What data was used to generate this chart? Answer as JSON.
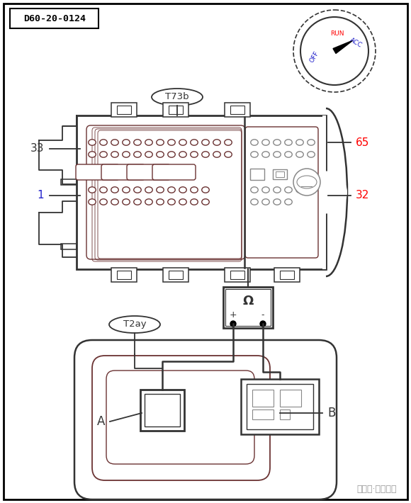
{
  "bg_color": "#ffffff",
  "line_color": "#000000",
  "dark_line": "#333333",
  "gray_line": "#888888",
  "brown_line": "#6B3333",
  "title_label": "D60-20-0124",
  "connector_label": "T73b",
  "connector2_label": "T2ay",
  "label_33": "33",
  "label_1": "1",
  "label_65": "65",
  "label_32": "32",
  "label_A": "A",
  "label_B": "B",
  "watermark": "中华网·汽车频道"
}
